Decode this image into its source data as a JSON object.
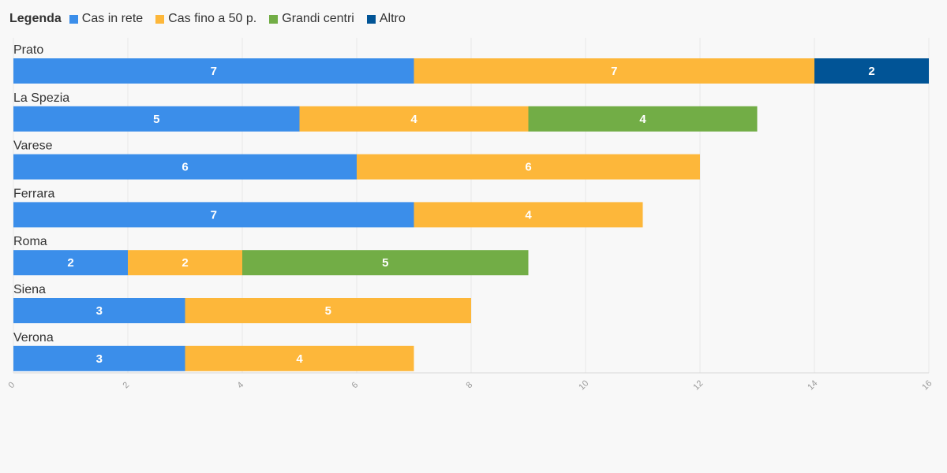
{
  "chart_data": {
    "type": "bar",
    "orientation": "horizontal",
    "stacked": true,
    "legend_title": "Legenda",
    "legend_position": "top-left",
    "categories": [
      "Prato",
      "La Spezia",
      "Varese",
      "Ferrara",
      "Roma",
      "Siena",
      "Verona"
    ],
    "series": [
      {
        "name": "Cas in rete",
        "color": "#3b8eea",
        "values": [
          7,
          5,
          6,
          7,
          2,
          3,
          3
        ]
      },
      {
        "name": "Cas fino a 50 p.",
        "color": "#fdb73a",
        "values": [
          7,
          4,
          6,
          4,
          2,
          5,
          4
        ]
      },
      {
        "name": "Grandi centri",
        "color": "#72ad46",
        "values": [
          0,
          4,
          0,
          0,
          5,
          0,
          0
        ]
      },
      {
        "name": "Altro",
        "color": "#015496",
        "values": [
          2,
          0,
          0,
          0,
          0,
          0,
          0
        ]
      }
    ],
    "xlim": [
      0,
      16
    ],
    "xticks": [
      0,
      2,
      4,
      6,
      8,
      10,
      12,
      14,
      16
    ],
    "grid": true
  }
}
